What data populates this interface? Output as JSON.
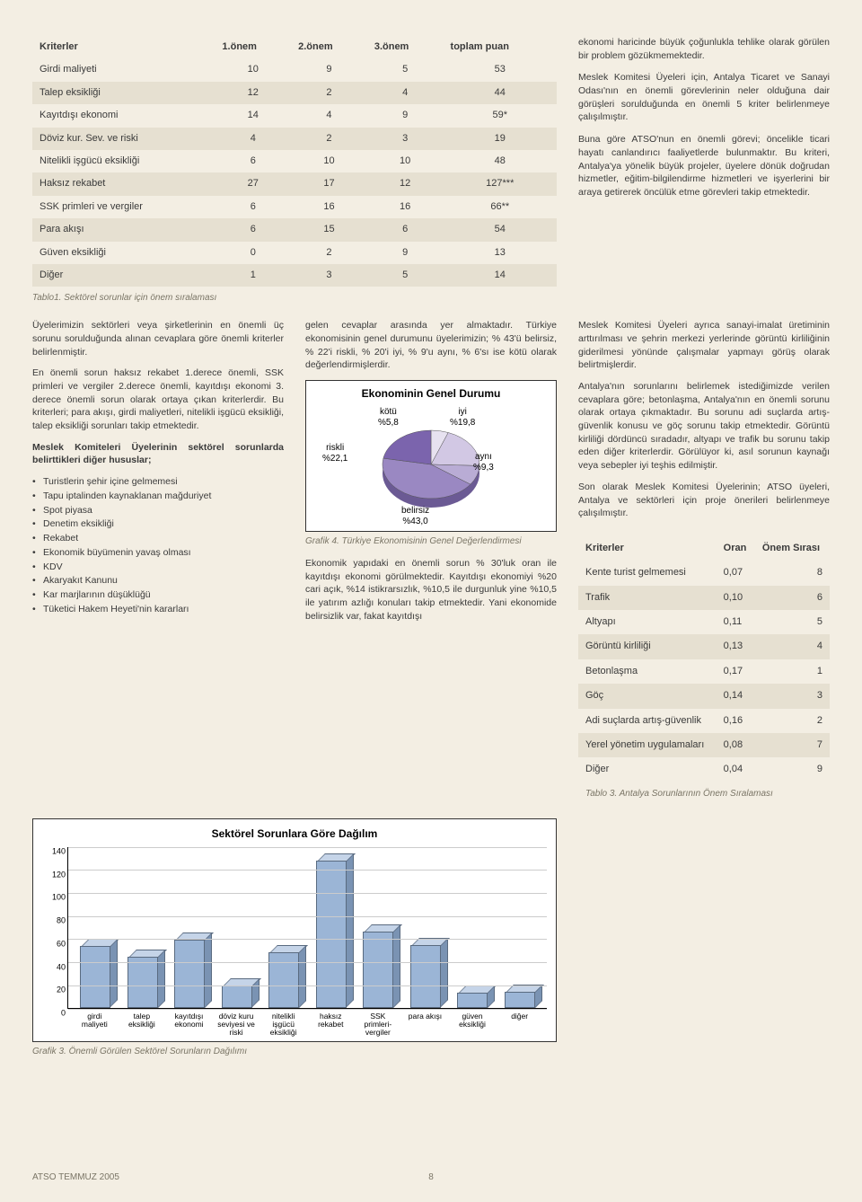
{
  "colors": {
    "page_bg": "#f3eee3",
    "row_alt": "#e6e0d1",
    "text": "#3a3a3a",
    "caption": "#7a7566",
    "bar_front": "#9bb5d6",
    "bar_top": "#c5d4e8",
    "bar_side": "#7a93b3",
    "bar_border": "#5a6b80",
    "box_border": "#333333",
    "box_bg": "#ffffff",
    "grid": "#cccccc"
  },
  "table1": {
    "headers": [
      "Kriterler",
      "1.önem",
      "2.önem",
      "3.önem",
      "toplam puan"
    ],
    "rows": [
      [
        "Girdi maliyeti",
        "10",
        "9",
        "5",
        "53"
      ],
      [
        "Talep eksikliği",
        "12",
        "2",
        "4",
        "44"
      ],
      [
        "Kayıtdışı ekonomi",
        "14",
        "4",
        "9",
        "59*"
      ],
      [
        "Döviz kur. Sev. ve riski",
        "4",
        "2",
        "3",
        "19"
      ],
      [
        "Nitelikli işgücü eksikliği",
        "6",
        "10",
        "10",
        "48"
      ],
      [
        "Haksız rekabet",
        "27",
        "17",
        "12",
        "127***"
      ],
      [
        "SSK primleri ve vergiler",
        "6",
        "16",
        "16",
        "66**"
      ],
      [
        "Para akışı",
        "6",
        "15",
        "6",
        "54"
      ],
      [
        "Güven eksikliği",
        "0",
        "2",
        "9",
        "13"
      ],
      [
        "Diğer",
        "1",
        "3",
        "5",
        "14"
      ]
    ],
    "caption": "Tablo1. Sektörel sorunlar için önem sıralaması"
  },
  "col1": {
    "p1": "Üyelerimizin sektörleri veya şirketlerinin en önemli üç sorunu sorulduğunda alınan cevaplara göre önemli kriterler belirlenmiştir.",
    "p2": "En önemli sorun haksız rekabet 1.derece önemli, SSK primleri ve vergiler 2.derece önemli, kayıtdışı ekonomi 3. derece önemli sorun olarak ortaya çıkan kriterlerdir. Bu kriterleri; para akışı, girdi maliyetleri, nitelikli işgücü eksikliği, talep eksikliği sorunları takip etmektedir.",
    "p3": "Meslek Komiteleri Üyelerinin sektörel sorunlarda belirttikleri diğer hususlar;",
    "bullets": [
      "Turistlerin şehir içine gelmemesi",
      "Tapu iptalinden kaynaklanan mağduriyet",
      "Spot piyasa",
      "Denetim eksikliği",
      "Rekabet",
      "Ekonomik büyümenin yavaş olması",
      "KDV",
      "Akaryakıt Kanunu",
      "Kar marjlarının düşüklüğü",
      "Tüketici Hakem Heyeti'nin kararları"
    ]
  },
  "col2": {
    "p1": "gelen cevaplar arasında yer almaktadır. Türkiye ekonomisinin genel durumunu üyelerimizin; % 43'ü belirsiz, % 22'i riskli, % 20'i iyi, % 9'u aynı, % 6'sı ise kötü olarak değerlendirmişlerdir.",
    "pie": {
      "type": "pie",
      "title": "Ekonominin Genel Durumu",
      "slices": [
        {
          "label": "kötü",
          "pct": "%5,8",
          "value": 5.8,
          "color": "#e7e2f0"
        },
        {
          "label": "iyi",
          "pct": "%19,8",
          "value": 19.8,
          "color": "#d2c8e4"
        },
        {
          "label": "aynı",
          "pct": "%9,3",
          "value": 9.3,
          "color": "#b9acd5"
        },
        {
          "label": "belirsiz",
          "pct": "%43,0",
          "value": 43.0,
          "color": "#9a88c2"
        },
        {
          "label": "riskli",
          "pct": "%22,1",
          "value": 22.1,
          "color": "#7b64ad"
        }
      ],
      "caption": "Grafik 4. Türkiye Ekonomisinin Genel Değerlendirmesi"
    },
    "p2": "Ekonomik yapıdaki en önemli sorun % 30'luk oran ile kayıtdışı ekonomi görülmektedir. Kayıtdışı ekonomiyi %20 cari açık, %14 istikrarsızlık, %10,5 ile durgunluk yine %10,5 ile yatırım azlığı konuları takip etmektedir. Yani ekonomide belirsizlik var, fakat kayıtdışı"
  },
  "col3": {
    "p1": "ekonomi haricinde büyük çoğunlukla tehlike olarak görülen bir problem gözükmemektedir.",
    "p2": "Meslek Komitesi Üyeleri için, Antalya Ticaret ve Sanayi Odası'nın en önemli görevlerinin neler olduğuna dair görüşleri sorulduğunda en önemli 5 kriter belirlenmeye çalışılmıştır.",
    "p3": "Buna göre ATSO'nun en önemli görevi; öncelikle ticari hayatı canlandırıcı faaliyetlerde bulunmaktır. Bu kriteri, Antalya'ya yönelik büyük projeler, üyelere dönük doğrudan hizmetler, eğitim-bilgilendirme hizmetleri ve işyerlerini bir araya getirerek öncülük etme görevleri takip etmektedir.",
    "p4": "Meslek Komitesi Üyeleri ayrıca sanayi-imalat üretiminin arttırılması ve şehrin merkezi yerlerinde görüntü kirliliğinin giderilmesi yönünde çalışmalar yapmayı görüş olarak belirtmişlerdir.",
    "p5": "Antalya'nın sorunlarını belirlemek istediğimizde verilen cevaplara göre; betonlaşma, Antalya'nın en önemli sorunu olarak ortaya çıkmaktadır. Bu sorunu adi suçlarda artış-güvenlik konusu ve göç sorunu takip etmektedir. Görüntü kirliliği dördüncü sıradadır, altyapı ve trafik bu sorunu takip eden diğer kriterlerdir. Görülüyor ki, asıl sorunun kaynağı veya sebepler iyi teşhis edilmiştir.",
    "p6": "Son olarak Meslek Komitesi Üyelerinin; ATSO üyeleri, Antalya ve sektörleri için proje önerileri belirlenmeye çalışılmıştır."
  },
  "table2": {
    "headers": [
      "Kriterler",
      "Oran",
      "Önem Sırası"
    ],
    "rows": [
      [
        "Kente turist gelmemesi",
        "0,07",
        "8"
      ],
      [
        "Trafik",
        "0,10",
        "6"
      ],
      [
        "Altyapı",
        "0,11",
        "5"
      ],
      [
        "Görüntü kirliliği",
        "0,13",
        "4"
      ],
      [
        "Betonlaşma",
        "0,17",
        "1"
      ],
      [
        "Göç",
        "0,14",
        "3"
      ],
      [
        "Adi suçlarda artış-güvenlik",
        "0,16",
        "2"
      ],
      [
        "Yerel yönetim uygulamaları",
        "0,08",
        "7"
      ],
      [
        "Diğer",
        "0,04",
        "9"
      ]
    ],
    "caption": "Tablo 3. Antalya Sorunlarının Önem Sıralaması"
  },
  "bar": {
    "type": "bar",
    "title": "Sektörel Sorunlara Göre Dağılım",
    "ymax": 140,
    "ytick_step": 20,
    "categories": [
      "girdi maliyeti",
      "talep eksikliği",
      "kayıtdışı ekonomi",
      "döviz kuru seviyesi ve riski",
      "nitelikli işgücü eksikliği",
      "haksız rekabet",
      "SSK primleri-vergiler",
      "para akışı",
      "güven eksikliği",
      "diğer"
    ],
    "values": [
      53,
      44,
      59,
      19,
      48,
      127,
      66,
      54,
      13,
      14
    ],
    "bar_color": "#9bb5d6",
    "caption": "Grafik 3. Önemli Görülen Sektörel Sorunların Dağılımı"
  },
  "footer": {
    "left": "ATSO TEMMUZ 2005",
    "page": "8"
  }
}
